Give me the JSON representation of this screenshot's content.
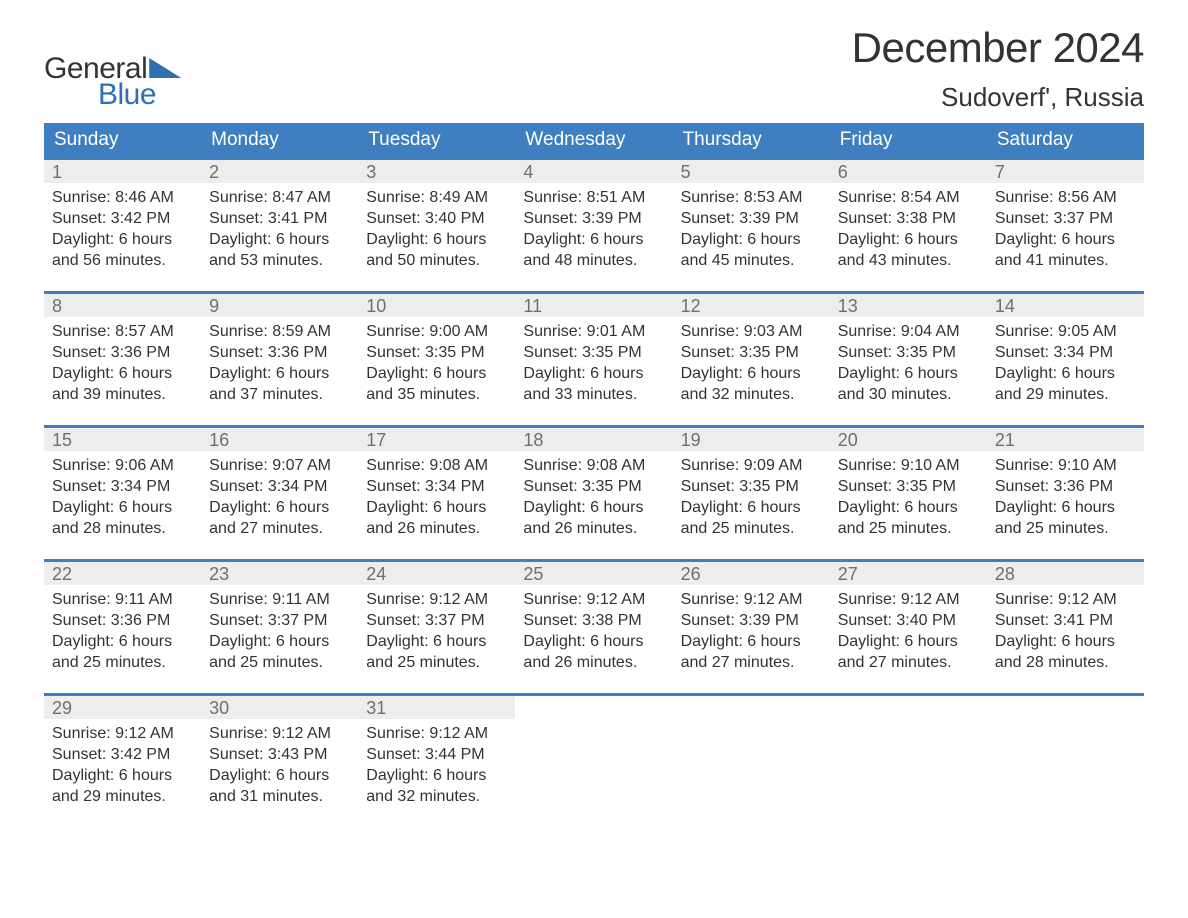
{
  "brand": {
    "text1": "General",
    "text2": "Blue",
    "accent_color": "#2f6fb2"
  },
  "title": "December 2024",
  "location": "Sudoverf', Russia",
  "colors": {
    "header_bg": "#3f7fbf",
    "header_text": "#ffffff",
    "daynum_bg": "#ededed",
    "daynum_text": "#6f6f6f",
    "body_text": "#333333",
    "row_border": "#3f7fbf",
    "page_bg": "#ffffff"
  },
  "fonts": {
    "title_size_pt": 42,
    "location_size_pt": 26,
    "weekday_size_pt": 19,
    "daynum_size_pt": 18,
    "body_size_pt": 16
  },
  "weekdays": [
    "Sunday",
    "Monday",
    "Tuesday",
    "Wednesday",
    "Thursday",
    "Friday",
    "Saturday"
  ],
  "weeks": [
    [
      {
        "n": "1",
        "sunrise": "Sunrise: 8:46 AM",
        "sunset": "Sunset: 3:42 PM",
        "daylight": "Daylight: 6 hours and 56 minutes."
      },
      {
        "n": "2",
        "sunrise": "Sunrise: 8:47 AM",
        "sunset": "Sunset: 3:41 PM",
        "daylight": "Daylight: 6 hours and 53 minutes."
      },
      {
        "n": "3",
        "sunrise": "Sunrise: 8:49 AM",
        "sunset": "Sunset: 3:40 PM",
        "daylight": "Daylight: 6 hours and 50 minutes."
      },
      {
        "n": "4",
        "sunrise": "Sunrise: 8:51 AM",
        "sunset": "Sunset: 3:39 PM",
        "daylight": "Daylight: 6 hours and 48 minutes."
      },
      {
        "n": "5",
        "sunrise": "Sunrise: 8:53 AM",
        "sunset": "Sunset: 3:39 PM",
        "daylight": "Daylight: 6 hours and 45 minutes."
      },
      {
        "n": "6",
        "sunrise": "Sunrise: 8:54 AM",
        "sunset": "Sunset: 3:38 PM",
        "daylight": "Daylight: 6 hours and 43 minutes."
      },
      {
        "n": "7",
        "sunrise": "Sunrise: 8:56 AM",
        "sunset": "Sunset: 3:37 PM",
        "daylight": "Daylight: 6 hours and 41 minutes."
      }
    ],
    [
      {
        "n": "8",
        "sunrise": "Sunrise: 8:57 AM",
        "sunset": "Sunset: 3:36 PM",
        "daylight": "Daylight: 6 hours and 39 minutes."
      },
      {
        "n": "9",
        "sunrise": "Sunrise: 8:59 AM",
        "sunset": "Sunset: 3:36 PM",
        "daylight": "Daylight: 6 hours and 37 minutes."
      },
      {
        "n": "10",
        "sunrise": "Sunrise: 9:00 AM",
        "sunset": "Sunset: 3:35 PM",
        "daylight": "Daylight: 6 hours and 35 minutes."
      },
      {
        "n": "11",
        "sunrise": "Sunrise: 9:01 AM",
        "sunset": "Sunset: 3:35 PM",
        "daylight": "Daylight: 6 hours and 33 minutes."
      },
      {
        "n": "12",
        "sunrise": "Sunrise: 9:03 AM",
        "sunset": "Sunset: 3:35 PM",
        "daylight": "Daylight: 6 hours and 32 minutes."
      },
      {
        "n": "13",
        "sunrise": "Sunrise: 9:04 AM",
        "sunset": "Sunset: 3:35 PM",
        "daylight": "Daylight: 6 hours and 30 minutes."
      },
      {
        "n": "14",
        "sunrise": "Sunrise: 9:05 AM",
        "sunset": "Sunset: 3:34 PM",
        "daylight": "Daylight: 6 hours and 29 minutes."
      }
    ],
    [
      {
        "n": "15",
        "sunrise": "Sunrise: 9:06 AM",
        "sunset": "Sunset: 3:34 PM",
        "daylight": "Daylight: 6 hours and 28 minutes."
      },
      {
        "n": "16",
        "sunrise": "Sunrise: 9:07 AM",
        "sunset": "Sunset: 3:34 PM",
        "daylight": "Daylight: 6 hours and 27 minutes."
      },
      {
        "n": "17",
        "sunrise": "Sunrise: 9:08 AM",
        "sunset": "Sunset: 3:34 PM",
        "daylight": "Daylight: 6 hours and 26 minutes."
      },
      {
        "n": "18",
        "sunrise": "Sunrise: 9:08 AM",
        "sunset": "Sunset: 3:35 PM",
        "daylight": "Daylight: 6 hours and 26 minutes."
      },
      {
        "n": "19",
        "sunrise": "Sunrise: 9:09 AM",
        "sunset": "Sunset: 3:35 PM",
        "daylight": "Daylight: 6 hours and 25 minutes."
      },
      {
        "n": "20",
        "sunrise": "Sunrise: 9:10 AM",
        "sunset": "Sunset: 3:35 PM",
        "daylight": "Daylight: 6 hours and 25 minutes."
      },
      {
        "n": "21",
        "sunrise": "Sunrise: 9:10 AM",
        "sunset": "Sunset: 3:36 PM",
        "daylight": "Daylight: 6 hours and 25 minutes."
      }
    ],
    [
      {
        "n": "22",
        "sunrise": "Sunrise: 9:11 AM",
        "sunset": "Sunset: 3:36 PM",
        "daylight": "Daylight: 6 hours and 25 minutes."
      },
      {
        "n": "23",
        "sunrise": "Sunrise: 9:11 AM",
        "sunset": "Sunset: 3:37 PM",
        "daylight": "Daylight: 6 hours and 25 minutes."
      },
      {
        "n": "24",
        "sunrise": "Sunrise: 9:12 AM",
        "sunset": "Sunset: 3:37 PM",
        "daylight": "Daylight: 6 hours and 25 minutes."
      },
      {
        "n": "25",
        "sunrise": "Sunrise: 9:12 AM",
        "sunset": "Sunset: 3:38 PM",
        "daylight": "Daylight: 6 hours and 26 minutes."
      },
      {
        "n": "26",
        "sunrise": "Sunrise: 9:12 AM",
        "sunset": "Sunset: 3:39 PM",
        "daylight": "Daylight: 6 hours and 27 minutes."
      },
      {
        "n": "27",
        "sunrise": "Sunrise: 9:12 AM",
        "sunset": "Sunset: 3:40 PM",
        "daylight": "Daylight: 6 hours and 27 minutes."
      },
      {
        "n": "28",
        "sunrise": "Sunrise: 9:12 AM",
        "sunset": "Sunset: 3:41 PM",
        "daylight": "Daylight: 6 hours and 28 minutes."
      }
    ],
    [
      {
        "n": "29",
        "sunrise": "Sunrise: 9:12 AM",
        "sunset": "Sunset: 3:42 PM",
        "daylight": "Daylight: 6 hours and 29 minutes."
      },
      {
        "n": "30",
        "sunrise": "Sunrise: 9:12 AM",
        "sunset": "Sunset: 3:43 PM",
        "daylight": "Daylight: 6 hours and 31 minutes."
      },
      {
        "n": "31",
        "sunrise": "Sunrise: 9:12 AM",
        "sunset": "Sunset: 3:44 PM",
        "daylight": "Daylight: 6 hours and 32 minutes."
      },
      null,
      null,
      null,
      null
    ]
  ]
}
